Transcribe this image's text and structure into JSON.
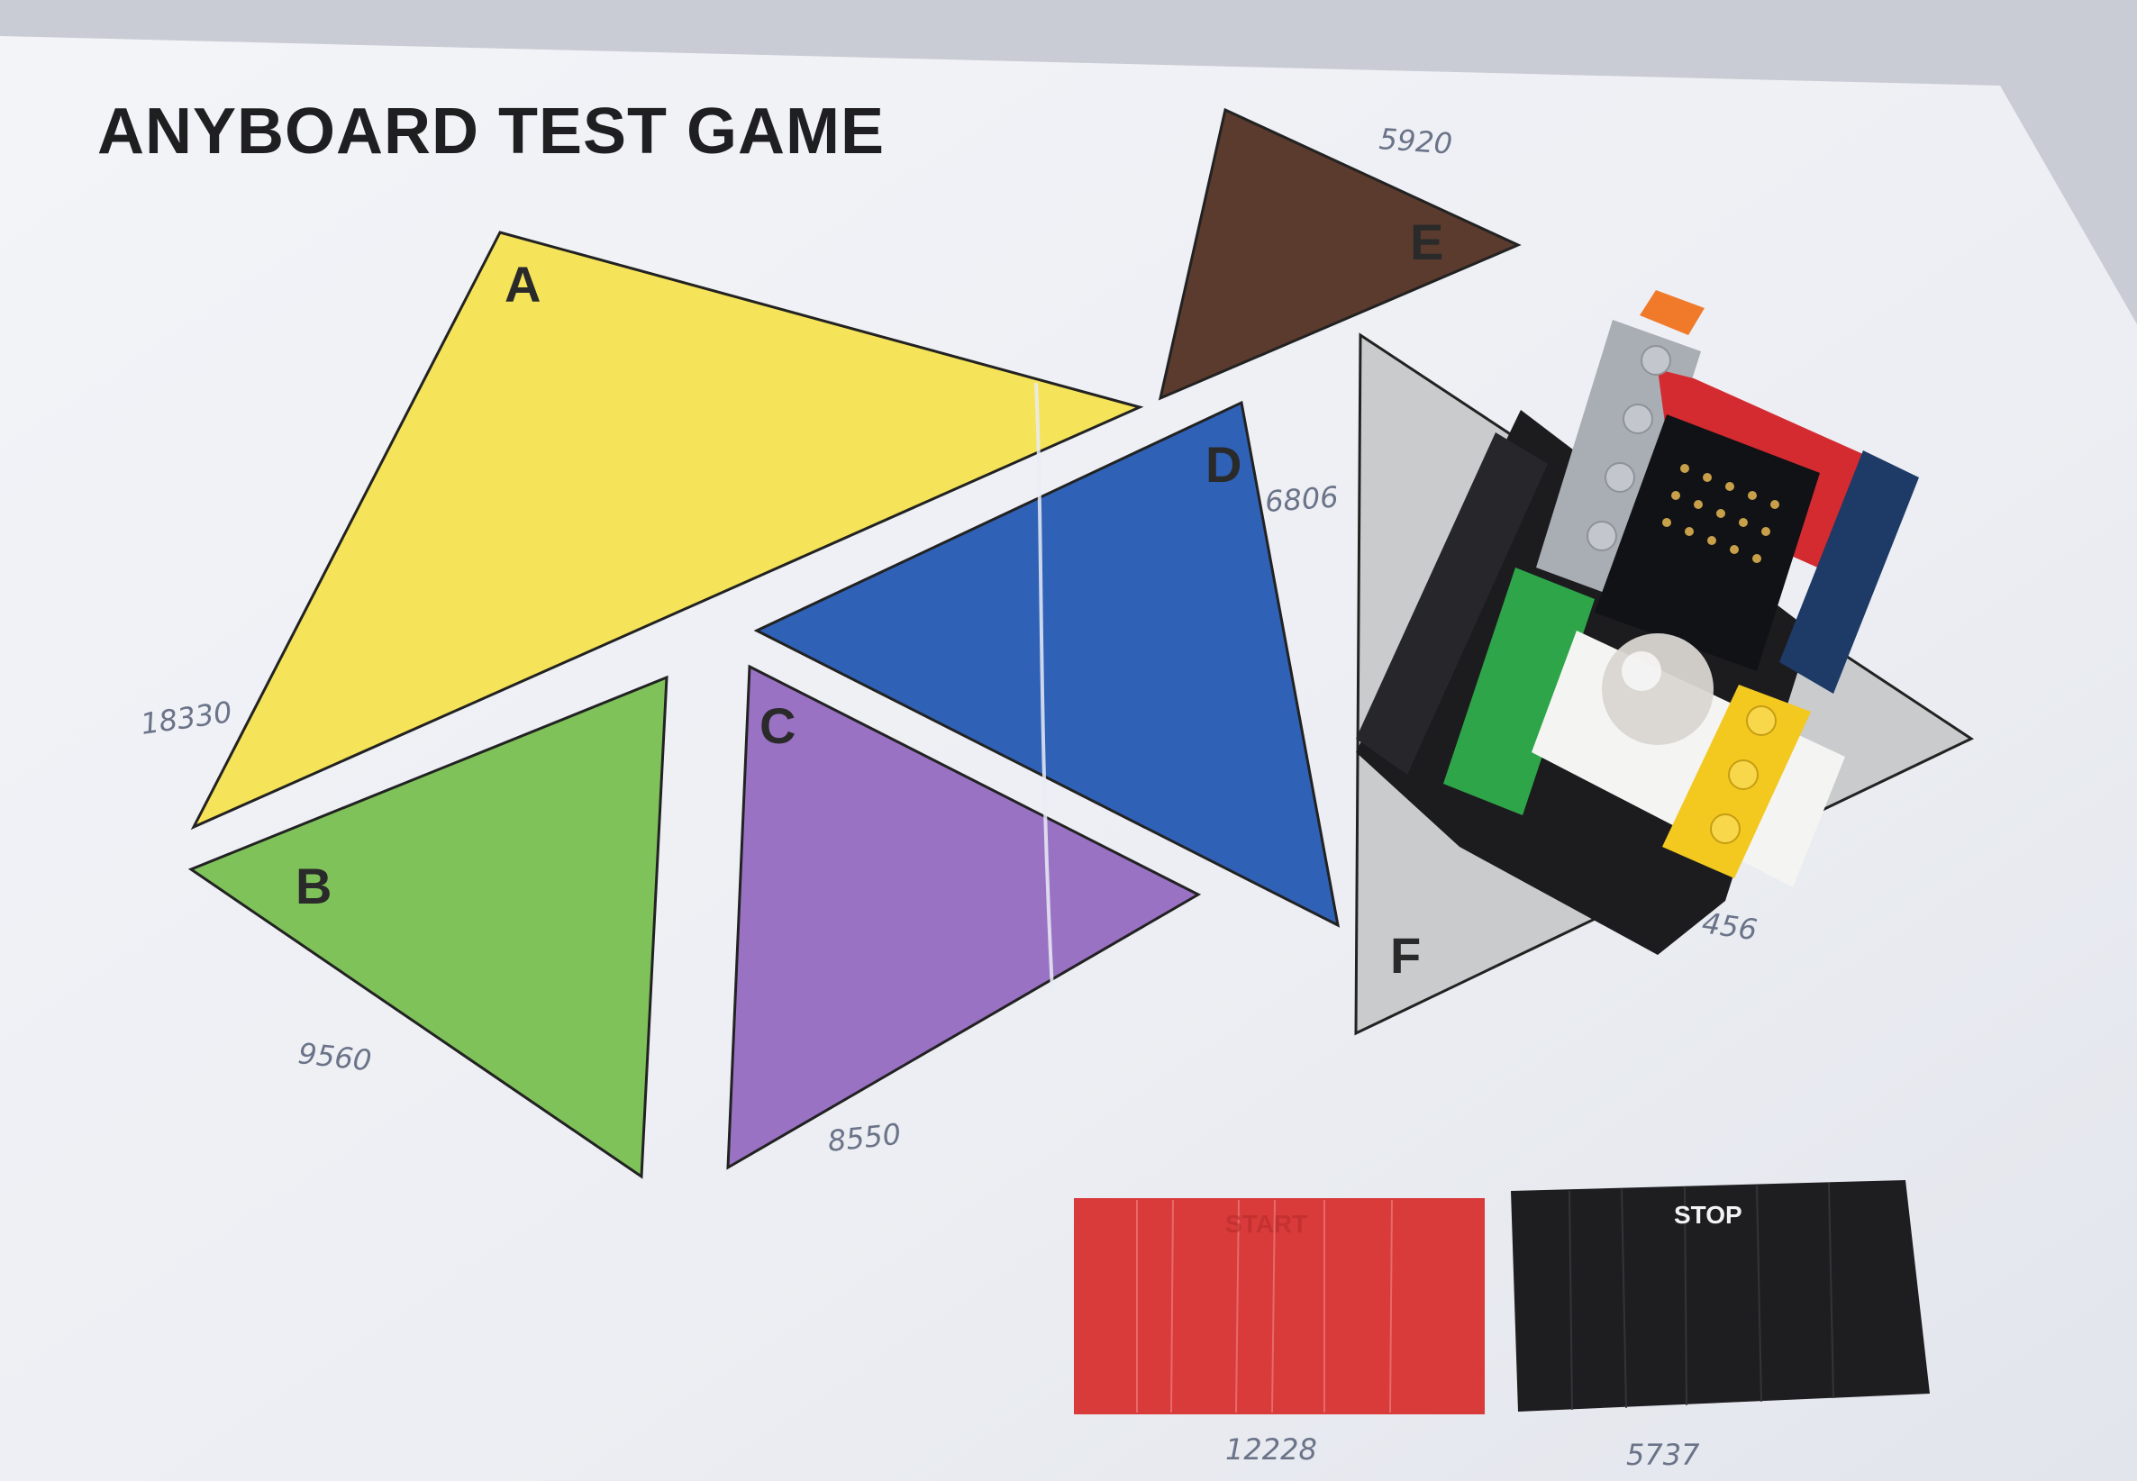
{
  "title": "ANYBOARD TEST GAME",
  "pieces": [
    {
      "id": "A",
      "label": "A",
      "color": "#f5e35a",
      "note": "18330"
    },
    {
      "id": "B",
      "label": "B",
      "color": "#7fc25a",
      "note": "9560"
    },
    {
      "id": "C",
      "label": "C",
      "color": "#9a72c4",
      "note": "8550"
    },
    {
      "id": "D",
      "label": "D",
      "color": "#2f62b6",
      "note": "6806"
    },
    {
      "id": "E",
      "label": "E",
      "color": "#5b3b2e",
      "note": "5920"
    },
    {
      "id": "F",
      "label": "F",
      "color": "#c9cbcd",
      "note": "456"
    }
  ],
  "buttons": {
    "start": {
      "label": "START",
      "color": "#d93a3a",
      "note": "12228"
    },
    "stop": {
      "label": "STOP",
      "color": "#1e1e20",
      "note": "5737"
    }
  },
  "device_icon": "lego-token-icon"
}
